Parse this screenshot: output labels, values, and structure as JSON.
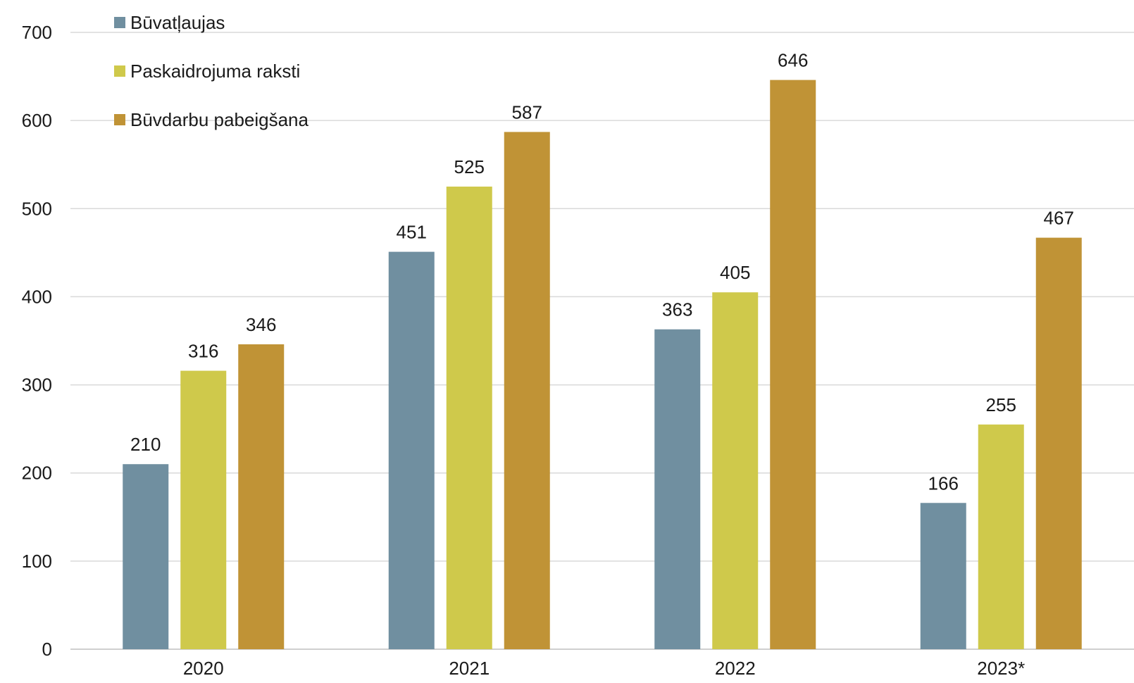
{
  "chart_data": {
    "type": "bar",
    "title": "",
    "xlabel": "",
    "ylabel": "",
    "categories": [
      "2020",
      "2021",
      "2022",
      "2023*"
    ],
    "series": [
      {
        "name": "Būvatļaujas",
        "color": "#708fa0",
        "values": [
          210,
          451,
          363,
          166
        ]
      },
      {
        "name": "Paskaidrojuma raksti",
        "color": "#cfc94b",
        "values": [
          316,
          525,
          405,
          255
        ]
      },
      {
        "name": "Būvdarbu pabeigšana",
        "color": "#c09336",
        "values": [
          346,
          587,
          646,
          467
        ]
      }
    ],
    "ylim": [
      0,
      700
    ],
    "yticks": [
      0,
      100,
      200,
      300,
      400,
      500,
      600,
      700
    ],
    "grid": true,
    "legend_position": "top-left",
    "show_data_labels": true
  }
}
